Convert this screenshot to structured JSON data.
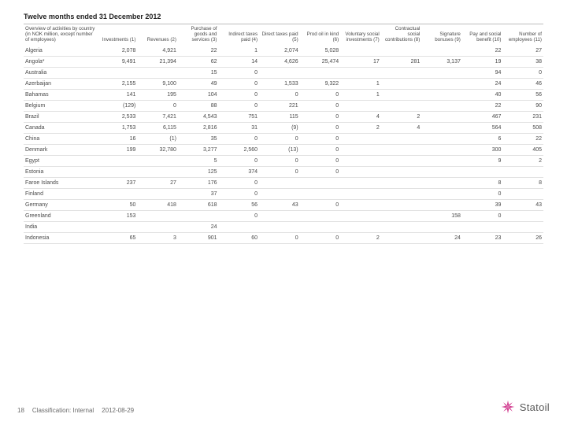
{
  "table": {
    "title": "Twelve months ended 31 December 2012",
    "columns": [
      {
        "label": "Overview of activities by country (in NOK million, except number of employees)",
        "align": "left"
      },
      {
        "label": "Investments (1)"
      },
      {
        "label": "Revenues (2)"
      },
      {
        "label": "Purchase of goods and services (3)"
      },
      {
        "label": "Indirect taxes paid (4)"
      },
      {
        "label": "Direct taxes paid (5)"
      },
      {
        "label": "Prod oil in kind (6)"
      },
      {
        "label": "Voluntary social investments (7)"
      },
      {
        "label": "Contractual social contributions (8)"
      },
      {
        "label": "Signature bonuses (9)"
      },
      {
        "label": "Pay and social benefit (10)"
      },
      {
        "label": "Number of employees (11)"
      }
    ],
    "rows": [
      [
        "Algeria",
        "2,078",
        "4,921",
        "22",
        "1",
        "2,074",
        "5,028",
        "",
        "",
        "",
        "22",
        "27"
      ],
      [
        "Angola*",
        "9,491",
        "21,394",
        "62",
        "14",
        "4,626",
        "25,474",
        "17",
        "281",
        "3,137",
        "19",
        "38"
      ],
      [
        "Australia",
        "",
        "",
        "15",
        "0",
        "",
        "",
        "",
        "",
        "",
        "94",
        "0"
      ],
      [
        "Azerbaijan",
        "2,155",
        "9,100",
        "49",
        "0",
        "1,533",
        "9,322",
        "1",
        "",
        "",
        "24",
        "46"
      ],
      [
        "Bahamas",
        "141",
        "195",
        "104",
        "0",
        "0",
        "0",
        "1",
        "",
        "",
        "40",
        "56"
      ],
      [
        "Belgium",
        "(129)",
        "0",
        "88",
        "0",
        "221",
        "0",
        "",
        "",
        "",
        "22",
        "90"
      ],
      [
        "Brazil",
        "2,533",
        "7,421",
        "4,543",
        "751",
        "115",
        "0",
        "4",
        "2",
        "",
        "467",
        "231"
      ],
      [
        "Canada",
        "1,753",
        "6,115",
        "2,816",
        "31",
        "(9)",
        "0",
        "2",
        "4",
        "",
        "564",
        "508"
      ],
      [
        "China",
        "16",
        "(1)",
        "35",
        "0",
        "0",
        "0",
        "",
        "",
        "",
        "6",
        "22"
      ],
      [
        "Denmark",
        "199",
        "32,780",
        "3,277",
        "2,560",
        "(13)",
        "0",
        "",
        "",
        "",
        "300",
        "405"
      ],
      [
        "Egypt",
        "",
        "",
        "5",
        "0",
        "0",
        "0",
        "",
        "",
        "",
        "9",
        "2"
      ],
      [
        "Estonia",
        "",
        "",
        "125",
        "374",
        "0",
        "0",
        "",
        "",
        "",
        "",
        ""
      ],
      [
        "Faroe Islands",
        "237",
        "27",
        "176",
        "0",
        "",
        "",
        "",
        "",
        "",
        "8",
        "8"
      ],
      [
        "Finland",
        "",
        "",
        "37",
        "0",
        "",
        "",
        "",
        "",
        "",
        "0",
        ""
      ],
      [
        "Germany",
        "50",
        "418",
        "618",
        "56",
        "43",
        "0",
        "",
        "",
        "",
        "39",
        "43"
      ],
      [
        "Greenland",
        "153",
        "",
        "",
        "0",
        "",
        "",
        "",
        "",
        "158",
        "0",
        ""
      ],
      [
        "India",
        "",
        "",
        "24",
        "",
        "",
        "",
        "",
        "",
        "",
        "",
        ""
      ],
      [
        "Indonesia",
        "65",
        "3",
        "901",
        "60",
        "0",
        "0",
        "2",
        "",
        "24",
        "23",
        "26"
      ]
    ],
    "border_color": "#e2e2e2",
    "header_border_color": "#bdbdbd",
    "text_color": "#4a4a4a",
    "title_font_size": 9,
    "header_font_size": 6.2,
    "cell_font_size": 7
  },
  "footer": {
    "page_number": "18",
    "classification": "Classification: Internal",
    "date": "2012-08-29",
    "logo_text": "Statoil",
    "logo_color": "#d13a8e"
  }
}
